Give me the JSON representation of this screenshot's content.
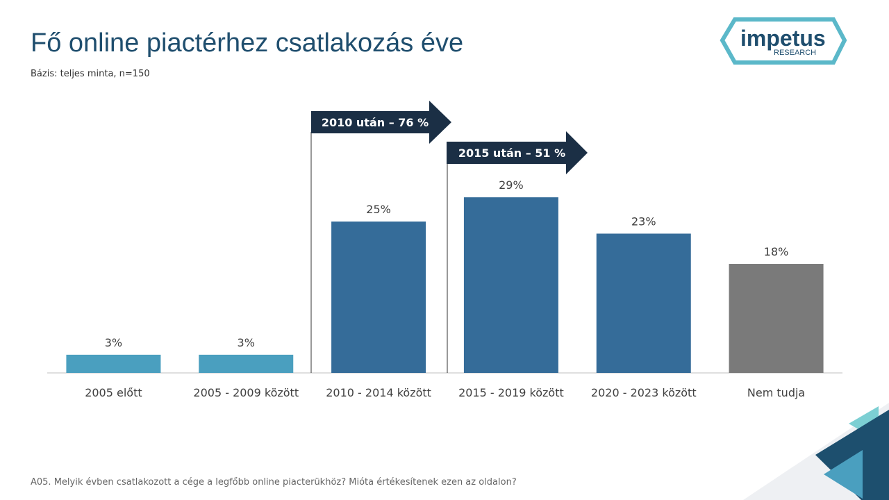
{
  "chart_data": {
    "type": "bar",
    "title": "Fő online piactérhez csatlakozás éve",
    "subtitle": "Bázis: teljes minta, n=150",
    "footnote": "A05. Melyik évben csatlakozott a cége a legfőbb online piacterükhöz? Mióta értékesítenek ezen az oldalon?",
    "categories": [
      "2005 előtt",
      "2005 - 2009 között",
      "2010 - 2014 között",
      "2015 - 2019 között",
      "2020 - 2023 között",
      "Nem tudja"
    ],
    "values": [
      3,
      3,
      25,
      29,
      23,
      18
    ],
    "value_labels": [
      "3%",
      "3%",
      "25%",
      "29%",
      "23%",
      "18%"
    ],
    "colors": [
      "#4a9fbf",
      "#4a9fbf",
      "#356c99",
      "#356c99",
      "#356c99",
      "#7a7a7a"
    ],
    "annotations": [
      "2010 után – 76 %",
      "2015 után – 51 %"
    ],
    "logo": {
      "name": "impetus",
      "tagline": "RESEARCH"
    }
  }
}
